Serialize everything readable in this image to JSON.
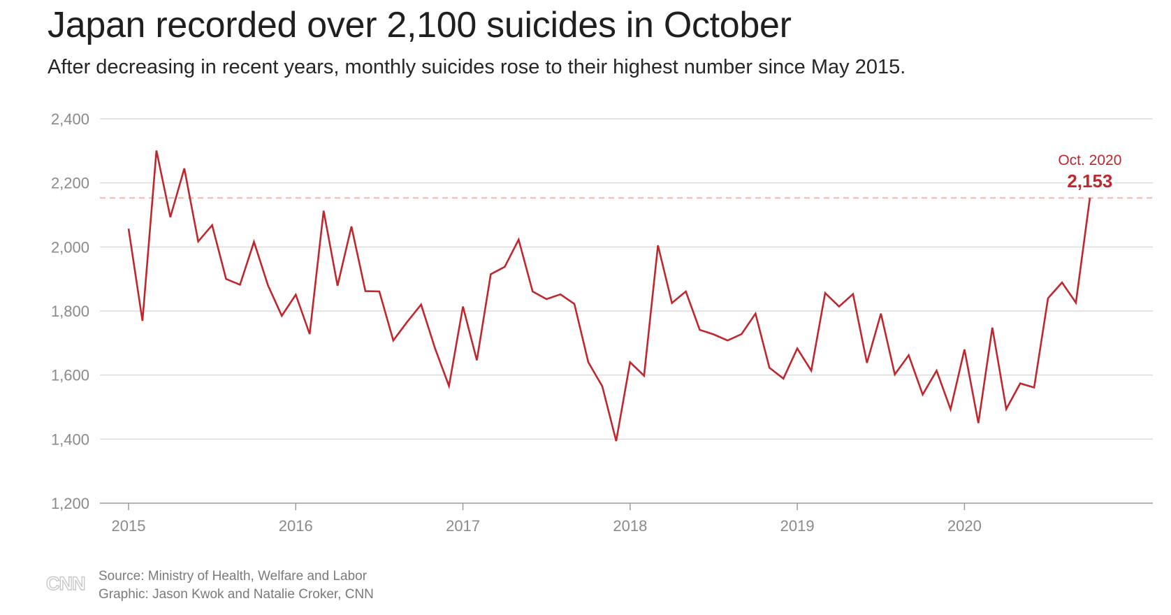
{
  "header": {
    "title": "Japan recorded over 2,100 suicides in October",
    "subtitle": "After decreasing in recent years, monthly suicides rose to their highest number since May 2015."
  },
  "footer": {
    "source": "Source: Ministry of Health, Welfare and Labor",
    "credit": "Graphic: Jason Kwok and Natalie Croker, CNN",
    "logo_text": "CNN"
  },
  "chart_data": {
    "type": "line",
    "title": "Japan recorded over 2,100 suicides in October",
    "subtitle": "After decreasing in recent years, monthly suicides rose to their highest number since May 2015.",
    "xlabel": "",
    "ylabel": "",
    "ylim": [
      1200,
      2400
    ],
    "xlim": [
      "2015-01",
      "2021-01"
    ],
    "yticks": [
      1200,
      1400,
      1600,
      1800,
      2000,
      2200,
      2400
    ],
    "ytick_labels": [
      "1,200",
      "1,400",
      "1,600",
      "1,800",
      "2,000",
      "2,200",
      "2,400"
    ],
    "xticks": [
      "2015-01",
      "2016-01",
      "2017-01",
      "2018-01",
      "2019-01",
      "2020-01"
    ],
    "xtick_labels": [
      "2015",
      "2016",
      "2017",
      "2018",
      "2019",
      "2020"
    ],
    "grid": "horizontal",
    "line_color": "#c0272d",
    "reference_line": {
      "value": 2153,
      "color": "#f4b8a8",
      "style": "dashed"
    },
    "annotation": {
      "x": "2020-10",
      "label": "Oct. 2020",
      "value_label": "2,153",
      "color": "#c0272d"
    },
    "series": [
      {
        "x": [
          "2015-01",
          "2015-02",
          "2015-03",
          "2015-04",
          "2015-05",
          "2015-06",
          "2015-07",
          "2015-08",
          "2015-09",
          "2015-10",
          "2015-11",
          "2015-12",
          "2016-01",
          "2016-02",
          "2016-03",
          "2016-04",
          "2016-05",
          "2016-06",
          "2016-07",
          "2016-08",
          "2016-09",
          "2016-10",
          "2016-11",
          "2016-12",
          "2017-01",
          "2017-02",
          "2017-03",
          "2017-04",
          "2017-05",
          "2017-06",
          "2017-07",
          "2017-08",
          "2017-09",
          "2017-10",
          "2017-11",
          "2017-12",
          "2018-01",
          "2018-02",
          "2018-03",
          "2018-04",
          "2018-05",
          "2018-06",
          "2018-07",
          "2018-08",
          "2018-09",
          "2018-10",
          "2018-11",
          "2018-12",
          "2019-01",
          "2019-02",
          "2019-03",
          "2019-04",
          "2019-05",
          "2019-06",
          "2019-07",
          "2019-08",
          "2019-09",
          "2019-10",
          "2019-11",
          "2019-12",
          "2020-01",
          "2020-02",
          "2020-03",
          "2020-04",
          "2020-05",
          "2020-06",
          "2020-07",
          "2020-08",
          "2020-09",
          "2020-10"
        ],
        "values": [
          2057,
          1769,
          2301,
          2093,
          2245,
          2017,
          2068,
          1900,
          1882,
          2016,
          1881,
          1785,
          1851,
          1728,
          2113,
          1879,
          2064,
          1862,
          1861,
          1708,
          1766,
          1820,
          1683,
          1566,
          1814,
          1646,
          1915,
          1938,
          2023,
          1861,
          1837,
          1852,
          1822,
          1640,
          1565,
          1394,
          1640,
          1598,
          2005,
          1825,
          1861,
          1741,
          1727,
          1708,
          1728,
          1792,
          1623,
          1589,
          1683,
          1614,
          1856,
          1814,
          1853,
          1638,
          1792,
          1602,
          1662,
          1539,
          1614,
          1493,
          1680,
          1450,
          1748,
          1494,
          1574,
          1561,
          1840,
          1889,
          1826,
          2153
        ]
      }
    ]
  }
}
